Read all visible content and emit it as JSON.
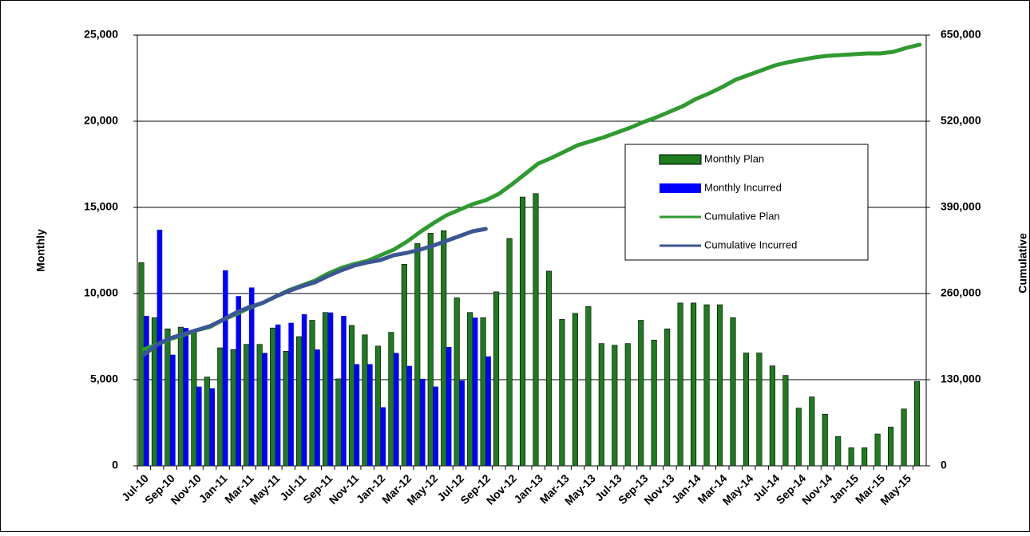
{
  "chart_data": {
    "type": "combo",
    "y_label": "Monthly",
    "y2_label": "Cumulative",
    "categories": [
      "Jul-10",
      null,
      "Sep-10",
      null,
      "Nov-10",
      null,
      "Jan-11",
      null,
      "Mar-11",
      null,
      "May-11",
      null,
      "Jul-11",
      null,
      "Sep-11",
      null,
      "Nov-11",
      null,
      "Jan-12",
      null,
      "Mar-12",
      null,
      "May-12",
      null,
      "Jul-12",
      null,
      "Sep-12",
      null,
      "Nov-12",
      null,
      "Jan-13",
      null,
      "Mar-13",
      null,
      "May-13",
      null,
      "Jul-13",
      null,
      "Sep-13",
      null,
      "Nov-13",
      null,
      "Jan-14",
      null,
      "Mar-14",
      null,
      "May-14",
      null,
      "Jul-14",
      null,
      "Sep-14",
      null,
      "Nov-14",
      null,
      "Jan-15",
      null,
      "Mar-15",
      null,
      "May-15",
      null
    ],
    "ylim": [
      0,
      25000
    ],
    "yticks": [
      0,
      {
        "value": 5000,
        "label": "5,000"
      },
      {
        "value": 10000,
        "label": "10,000"
      },
      {
        "value": 15000,
        "label": "15,000"
      },
      {
        "value": 20000,
        "label": "20,000"
      },
      {
        "value": 25000,
        "label": "25,000"
      }
    ],
    "y2lim": [
      0,
      650000
    ],
    "y2ticks": [
      0,
      {
        "value": 130000,
        "label": "130,000"
      },
      {
        "value": 260000,
        "label": "260,000"
      },
      {
        "value": 390000,
        "label": "390,000"
      },
      {
        "value": 520000,
        "label": "520,000"
      },
      {
        "value": 650000,
        "label": "650,000"
      }
    ],
    "grid": true,
    "series": [
      {
        "name": "Monthly Plan",
        "type": "bar",
        "color": "#1e7b1e",
        "values": [
          11800,
          8600,
          7950,
          8050,
          7800,
          5150,
          6850,
          6750,
          7050,
          7050,
          8000,
          6650,
          7500,
          8450,
          8900,
          5050,
          8150,
          7600,
          6950,
          7750,
          11700,
          12900,
          13500,
          13650,
          9750,
          8900,
          8600,
          10100,
          13200,
          15600,
          15800,
          11300,
          8500,
          8850,
          9250,
          7100,
          7000,
          7100,
          8450,
          7300,
          7950,
          9450,
          9450,
          9350,
          9350,
          8600,
          6550,
          6550,
          5800,
          5250,
          3350,
          4000,
          3000,
          1700,
          1050,
          1050,
          1850,
          2250,
          3300,
          4900
        ]
      },
      {
        "name": "Monthly Incurred",
        "type": "bar",
        "color": "#0000ff",
        "values": [
          8700,
          13700,
          6450,
          8000,
          4600,
          4500,
          11350,
          9850,
          10350,
          6550,
          8200,
          8300,
          8800,
          6750,
          8900,
          8700,
          5900,
          5900,
          3400,
          6550,
          5800,
          5050,
          4600,
          6900,
          4950,
          8600,
          6350,
          null,
          null,
          null,
          null,
          null,
          null,
          null,
          null,
          null,
          null,
          null,
          null,
          null,
          null,
          null,
          null,
          null,
          null,
          null,
          null,
          null,
          null,
          null,
          null,
          null,
          null,
          null,
          null,
          null,
          null,
          null,
          null,
          null
        ]
      },
      {
        "name": "Cumulative Plan",
        "type": "line",
        "axis": "y2",
        "color": "#2f9a2f",
        "values": [
          175700,
          183000,
          191400,
          197400,
          204600,
          209400,
          220300,
          228700,
          238300,
          245600,
          255200,
          264800,
          272000,
          279300,
          290100,
          298500,
          304500,
          309400,
          317800,
          326200,
          338200,
          352700,
          365900,
          378000,
          386400,
          394800,
          400800,
          410500,
          424900,
          440600,
          456200,
          464600,
          474300,
          483900,
          489900,
          495900,
          503100,
          510400,
          518800,
          526000,
          534400,
          542900,
          553700,
          562100,
          571800,
          582600,
          589800,
          597000,
          604300,
          609100,
          612700,
          616300,
          618700,
          619900,
          621100,
          622300,
          622300,
          624700,
          630700,
          635500
        ]
      },
      {
        "name": "Cumulative Incurred",
        "type": "line",
        "axis": "y2",
        "color": "#3b5694",
        "values": [
          167300,
          183000,
          192600,
          198600,
          204600,
          210600,
          220300,
          231100,
          239500,
          245600,
          255200,
          263600,
          270800,
          276900,
          286500,
          294900,
          302100,
          306900,
          310600,
          317800,
          321400,
          326200,
          332200,
          339400,
          346700,
          353900,
          357500,
          null,
          null,
          null,
          null,
          null,
          null,
          null,
          null,
          null,
          null,
          null,
          null,
          null,
          null,
          null,
          null,
          null,
          null,
          null,
          null,
          null,
          null,
          null,
          null,
          null,
          null,
          null,
          null,
          null,
          null,
          null,
          null,
          null
        ]
      }
    ]
  }
}
